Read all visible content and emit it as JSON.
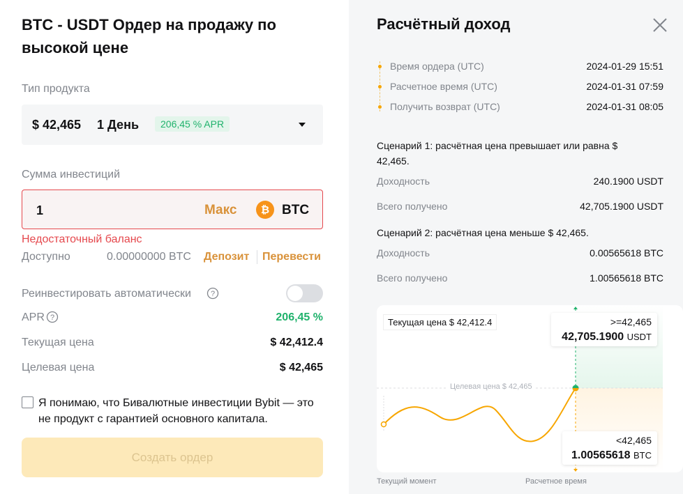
{
  "left": {
    "title": "BTC - USDT Ордер на продажу по высокой цене",
    "product_label": "Тип продукта",
    "product": {
      "price": "$ 42,465",
      "term": "1 День",
      "apr_badge": "206,45 % APR"
    },
    "amount_label": "Сумма инвестиций",
    "amount": {
      "value": "1",
      "max": "Макс",
      "coin": "BTC"
    },
    "error": "Недостаточный баланс",
    "available": {
      "label": "Доступно",
      "value": "0.00000000 BTC",
      "deposit": "Депозит",
      "transfer": "Перевести"
    },
    "reinvest": "Реинвестировать автоматически",
    "rows": [
      {
        "label": "APR",
        "value": "206,45 %"
      },
      {
        "label": "Текущая цена",
        "value": "$ 42,412.4"
      },
      {
        "label": "Целевая цена",
        "value": "$ 42,465"
      }
    ],
    "agreement": "Я понимаю, что Бивалютные инвестиции Bybit — это не продукт с гарантией основного капитала.",
    "submit": "Создать ордер"
  },
  "right": {
    "title": "Расчётный доход",
    "timeline": [
      {
        "label": "Время ордера (UTC)",
        "value": "2024-01-29 15:51"
      },
      {
        "label": "Расчетное время (UTC)",
        "value": "2024-01-31 07:59"
      },
      {
        "label": "Получить возврат (UTC)",
        "value": "2024-01-31 08:05"
      }
    ],
    "scenarios": [
      {
        "title": "Сценарий 1: расчётная цена превышает или равна $ 42,465.",
        "rows": [
          {
            "label": "Доходность",
            "value": "240.1900 USDT"
          },
          {
            "label": "Всего получено",
            "value": "42,705.1900 USDT"
          }
        ]
      },
      {
        "title": "Сценарий 2: расчётная цена меньше $ 42,465.",
        "rows": [
          {
            "label": "Доходность",
            "value": "0.00565618 BTC"
          },
          {
            "label": "Всего получено",
            "value": "1.00565618 BTC"
          }
        ]
      }
    ],
    "chart": {
      "current_price": "Текущая цена $ 42,412.4",
      "target": "Целевая цена $ 42,465",
      "upper": {
        "condition": ">=42,465",
        "amount": "42,705.1900",
        "unit": "USDT"
      },
      "lower": {
        "condition": "<42,465",
        "amount": "1.00565618",
        "unit": "BTC"
      },
      "x_start": "Текущий момент",
      "x_end": "Расчетное время"
    }
  }
}
